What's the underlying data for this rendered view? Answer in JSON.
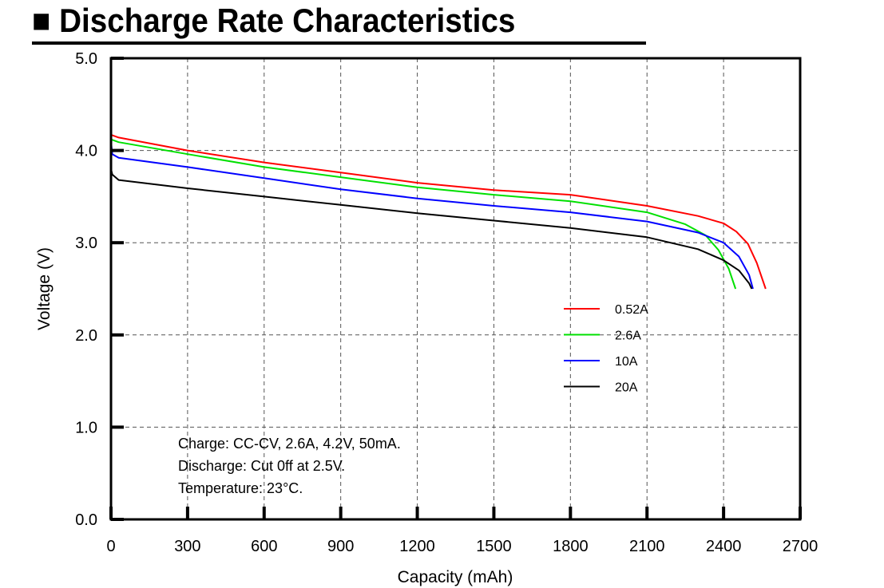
{
  "chart_data": {
    "type": "line",
    "title": "■ Discharge Rate Characteristics",
    "xlabel": "Capacity (mAh)",
    "ylabel": "Voltage (V)",
    "xlim": [
      0,
      2700
    ],
    "ylim": [
      0.0,
      5.0
    ],
    "xticks": [
      "0",
      "300",
      "600",
      "900",
      "1200",
      "1500",
      "1800",
      "2100",
      "2400",
      "2700"
    ],
    "yticks": [
      "0.0",
      "1.0",
      "2.0",
      "3.0",
      "4.0",
      "5.0"
    ],
    "grid": true,
    "legend_position": "right-middle",
    "notes": [
      "Charge: CC-CV, 2.6A, 4.2V, 50mA.",
      "Discharge: Cut 0ff at 2.5V.",
      "Temperature: 23°C."
    ],
    "series": [
      {
        "name": "0.52A",
        "color": "#ff0000",
        "x": [
          0,
          30,
          300,
          600,
          900,
          1200,
          1500,
          1800,
          2100,
          2300,
          2400,
          2450,
          2495,
          2530,
          2565
        ],
        "y": [
          4.17,
          4.14,
          4.0,
          3.87,
          3.76,
          3.65,
          3.57,
          3.52,
          3.4,
          3.29,
          3.21,
          3.12,
          2.99,
          2.78,
          2.5
        ]
      },
      {
        "name": "2.6A",
        "color": "#00e000",
        "x": [
          0,
          30,
          300,
          600,
          900,
          1200,
          1500,
          1800,
          2100,
          2250,
          2330,
          2380,
          2420,
          2447
        ],
        "y": [
          4.12,
          4.09,
          3.96,
          3.82,
          3.71,
          3.6,
          3.52,
          3.45,
          3.33,
          3.2,
          3.08,
          2.92,
          2.72,
          2.5
        ]
      },
      {
        "name": "10A",
        "color": "#0000ff",
        "x": [
          0,
          5,
          30,
          300,
          600,
          900,
          1200,
          1500,
          1800,
          2100,
          2300,
          2400,
          2460,
          2500,
          2515
        ],
        "y": [
          4.1,
          3.96,
          3.92,
          3.82,
          3.7,
          3.58,
          3.48,
          3.4,
          3.33,
          3.23,
          3.11,
          3.0,
          2.85,
          2.65,
          2.5
        ]
      },
      {
        "name": "20A",
        "color": "#000000",
        "x": [
          0,
          5,
          30,
          300,
          600,
          900,
          1200,
          1500,
          1800,
          2100,
          2300,
          2400,
          2460,
          2500,
          2510
        ],
        "y": [
          3.8,
          3.74,
          3.68,
          3.59,
          3.5,
          3.41,
          3.32,
          3.24,
          3.16,
          3.06,
          2.93,
          2.81,
          2.7,
          2.56,
          2.5
        ]
      }
    ]
  }
}
